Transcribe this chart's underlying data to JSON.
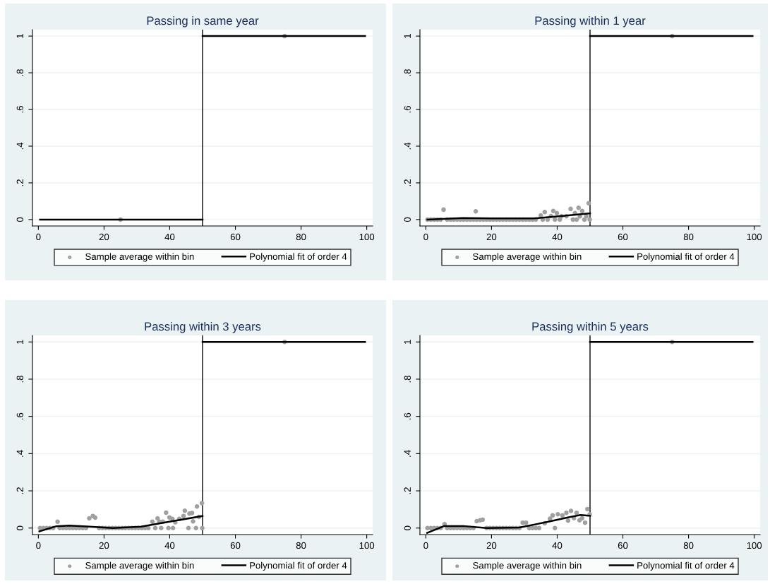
{
  "chart_data": [
    {
      "type": "scatter",
      "title": "Passing in same year",
      "xlim": [
        -1.8,
        101.8
      ],
      "ylim": [
        -0.035,
        1.035
      ],
      "xticks": [
        0,
        20,
        40,
        60,
        80,
        100
      ],
      "yticks": [
        {
          "value": 0,
          "label": "0"
        },
        {
          "value": 0.2,
          "label": ".2"
        },
        {
          "value": 0.4,
          "label": ".4"
        },
        {
          "value": 0.6,
          "label": ".6"
        },
        {
          "value": 0.8,
          "label": ".8"
        },
        {
          "value": 1,
          "label": "1"
        }
      ],
      "grid": "y",
      "legend": "bottom",
      "ref_lines": [
        {
          "axis": "x",
          "value": 50,
          "color": "#000000"
        }
      ],
      "series": [
        {
          "name": "Sample average within bin",
          "type": "scatter",
          "marker": "circle",
          "color": "#a0a0a0",
          "x": [
            25,
            75
          ],
          "values": [
            0,
            1
          ]
        },
        {
          "name": "Polynomial fit of order 4",
          "type": "line",
          "color": "#000000",
          "x": [
            0.5,
            50
          ],
          "values": [
            0,
            0
          ]
        },
        {
          "type": "line",
          "color": "#000000",
          "x": [
            50,
            99.5
          ],
          "values": [
            1,
            1
          ]
        }
      ]
    },
    {
      "type": "scatter",
      "title": "Passing within 1 year",
      "xlim": [
        -1.8,
        101.8
      ],
      "ylim": [
        -0.035,
        1.035
      ],
      "xticks": [
        0,
        20,
        40,
        60,
        80,
        100
      ],
      "yticks": [
        {
          "value": 0,
          "label": "0"
        },
        {
          "value": 0.2,
          "label": ".2"
        },
        {
          "value": 0.4,
          "label": ".4"
        },
        {
          "value": 0.6,
          "label": ".6"
        },
        {
          "value": 0.8,
          "label": ".8"
        },
        {
          "value": 1,
          "label": "1"
        }
      ],
      "grid": "y",
      "legend": "bottom",
      "ref_lines": [
        {
          "axis": "x",
          "value": 50,
          "color": "#000000"
        }
      ],
      "series": [
        {
          "name": "Sample average within bin",
          "type": "scatter",
          "marker": "circle",
          "color": "#a0a0a0",
          "x": [
            0.5,
            1.5,
            2.5,
            3.5,
            4.5,
            5.4,
            6.5,
            7.5,
            8.5,
            9.5,
            10.5,
            11.5,
            12.5,
            13.5,
            14.5,
            15.2,
            15.5,
            16.5,
            17.5,
            18.5,
            19.5,
            20.5,
            21.5,
            22.5,
            23.5,
            24.5,
            25.5,
            26.5,
            27.5,
            28.5,
            29.5,
            30.5,
            31.5,
            32.5,
            33.5,
            35.0,
            35.6,
            36.2,
            37.1,
            38.1,
            38.8,
            39.3,
            39.9,
            40.8,
            41.3,
            42.8,
            44.1,
            44.8,
            45.4,
            45.9,
            46.5,
            46.9,
            47.6,
            48.3,
            48.9,
            49.6,
            49.9,
            75
          ],
          "values": [
            0,
            0,
            0,
            0,
            0,
            0.054,
            0,
            0,
            0,
            0,
            0,
            0,
            0,
            0,
            0,
            0.045,
            0,
            0,
            0,
            0,
            0,
            0,
            0,
            0,
            0,
            0,
            0,
            0,
            0,
            0,
            0,
            0,
            0,
            0,
            0,
            0.023,
            0,
            0.041,
            0,
            0.019,
            0.047,
            0,
            0.035,
            0,
            0.018,
            0.018,
            0.058,
            0,
            0.035,
            0,
            0.064,
            0.017,
            0.047,
            0,
            0.018,
            0.089,
            0,
            1
          ]
        },
        {
          "name": "Polynomial fit of order 4",
          "type": "line",
          "color": "#000000",
          "x": [
            0.5,
            11.3,
            19.9,
            32.8,
            39.9,
            50
          ],
          "values": [
            0,
            0.008,
            0.006,
            0.006,
            0.017,
            0.034
          ]
        },
        {
          "type": "line",
          "color": "#000000",
          "x": [
            50,
            99.5
          ],
          "values": [
            1,
            1
          ]
        }
      ]
    },
    {
      "type": "scatter",
      "title": "Passing within 3 years",
      "xlim": [
        -1.8,
        101.8
      ],
      "ylim": [
        -0.035,
        1.035
      ],
      "xticks": [
        0,
        20,
        40,
        60,
        80,
        100
      ],
      "yticks": [
        {
          "value": 0,
          "label": "0"
        },
        {
          "value": 0.2,
          "label": ".2"
        },
        {
          "value": 0.4,
          "label": ".4"
        },
        {
          "value": 0.6,
          "label": ".6"
        },
        {
          "value": 0.8,
          "label": ".8"
        },
        {
          "value": 1,
          "label": "1"
        }
      ],
      "grid": "y",
      "legend": "bottom",
      "ref_lines": [
        {
          "axis": "x",
          "value": 50,
          "color": "#000000"
        }
      ],
      "series": [
        {
          "name": "Sample average within bin",
          "type": "scatter",
          "marker": "circle",
          "color": "#a0a0a0",
          "x": [
            0.5,
            1.5,
            2.5,
            3.5,
            4.5,
            5.85,
            6.5,
            7.5,
            8.5,
            9.5,
            10.5,
            11.5,
            12.5,
            13.5,
            14.5,
            15.5,
            16.6,
            17.3,
            18.5,
            19.5,
            20.5,
            21.5,
            22.5,
            23.5,
            24.5,
            25.5,
            26.5,
            27.5,
            28.5,
            29.5,
            30.5,
            31.5,
            32.5,
            33.5,
            34.7,
            35.6,
            36.3,
            36.9,
            37.4,
            37.9,
            38.9,
            39.6,
            39.9,
            40.8,
            41.0,
            41.7,
            42.9,
            44.2,
            44.6,
            45.7,
            46.0,
            46.8,
            47.1,
            48.0,
            48.3,
            48.9,
            49.8,
            49.9,
            75
          ],
          "values": [
            0,
            0,
            0,
            0,
            0,
            0.034,
            0,
            0,
            0,
            0,
            0,
            0,
            0,
            0,
            0,
            0.052,
            0.065,
            0.056,
            0,
            0,
            0,
            0,
            0,
            0,
            0,
            0,
            0,
            0,
            0,
            0,
            0,
            0,
            0,
            0,
            0.034,
            0,
            0.052,
            0.034,
            0,
            0.034,
            0.083,
            0,
            0.057,
            0.049,
            0,
            0.031,
            0.049,
            0.065,
            0.093,
            0,
            0.078,
            0.081,
            0.036,
            0,
            0.116,
            0.06,
            0.134,
            0,
            1
          ]
        },
        {
          "name": "Polynomial fit of order 4",
          "type": "line",
          "color": "#000000",
          "x": [
            0.3,
            5.5,
            9.4,
            15.5,
            22.7,
            31.3,
            39.9,
            50
          ],
          "values": [
            -0.018,
            0.01,
            0.013,
            0.008,
            0,
            0.008,
            0.034,
            0.065
          ]
        },
        {
          "type": "line",
          "color": "#000000",
          "x": [
            50,
            99.5
          ],
          "values": [
            1,
            1
          ]
        }
      ]
    },
    {
      "type": "scatter",
      "title": "Passing within 5 years",
      "xlim": [
        -1.8,
        101.8
      ],
      "ylim": [
        -0.035,
        1.035
      ],
      "xticks": [
        0,
        20,
        40,
        60,
        80,
        100
      ],
      "yticks": [
        {
          "value": 0,
          "label": "0"
        },
        {
          "value": 0.2,
          "label": ".2"
        },
        {
          "value": 0.4,
          "label": ".4"
        },
        {
          "value": 0.6,
          "label": ".6"
        },
        {
          "value": 0.8,
          "label": ".8"
        },
        {
          "value": 1,
          "label": "1"
        }
      ],
      "grid": "y",
      "legend": "bottom",
      "ref_lines": [
        {
          "axis": "x",
          "value": 50,
          "color": "#000000"
        }
      ],
      "series": [
        {
          "name": "Sample average within bin",
          "type": "scatter",
          "marker": "circle",
          "color": "#a0a0a0",
          "x": [
            0.5,
            1.5,
            2.5,
            3.5,
            4.5,
            5.7,
            6.5,
            7.5,
            8.5,
            9.5,
            10.5,
            11.5,
            12.5,
            13.5,
            14.5,
            15.5,
            16.5,
            17.3,
            18.5,
            19.5,
            20.5,
            21.5,
            22.5,
            23.5,
            24.5,
            25.5,
            26.5,
            27.5,
            28.5,
            29.5,
            30.5,
            31.5,
            32.5,
            33.5,
            34.5,
            36.2,
            37.8,
            38.6,
            39.3,
            40.2,
            41.6,
            42.8,
            43.3,
            44.2,
            45.1,
            45.9,
            46.8,
            47.6,
            48.5,
            49.2,
            49.9,
            75
          ],
          "values": [
            0,
            0,
            0,
            0,
            0,
            0.021,
            0,
            0,
            0,
            0,
            0,
            0,
            0,
            0,
            0,
            0.037,
            0.042,
            0.045,
            0,
            0,
            0,
            0,
            0,
            0,
            0,
            0,
            0,
            0,
            0,
            0.029,
            0.029,
            0,
            0,
            0,
            0,
            0.026,
            0.05,
            0.068,
            0,
            0.074,
            0.068,
            0.082,
            0.04,
            0.092,
            0.053,
            0.082,
            0.042,
            0.053,
            0.029,
            0.102,
            0.074,
            1
          ]
        },
        {
          "name": "Polynomial fit of order 4",
          "type": "line",
          "color": "#000000",
          "x": [
            0.4,
            5.6,
            11.3,
            18.5,
            28.5,
            37.1,
            43.5,
            47.1,
            50
          ],
          "values": [
            -0.026,
            0.011,
            0.011,
            0,
            0.003,
            0.033,
            0.058,
            0.07,
            0.066
          ]
        },
        {
          "type": "line",
          "color": "#000000",
          "x": [
            50,
            99.5
          ],
          "values": [
            1,
            1
          ]
        }
      ]
    }
  ]
}
